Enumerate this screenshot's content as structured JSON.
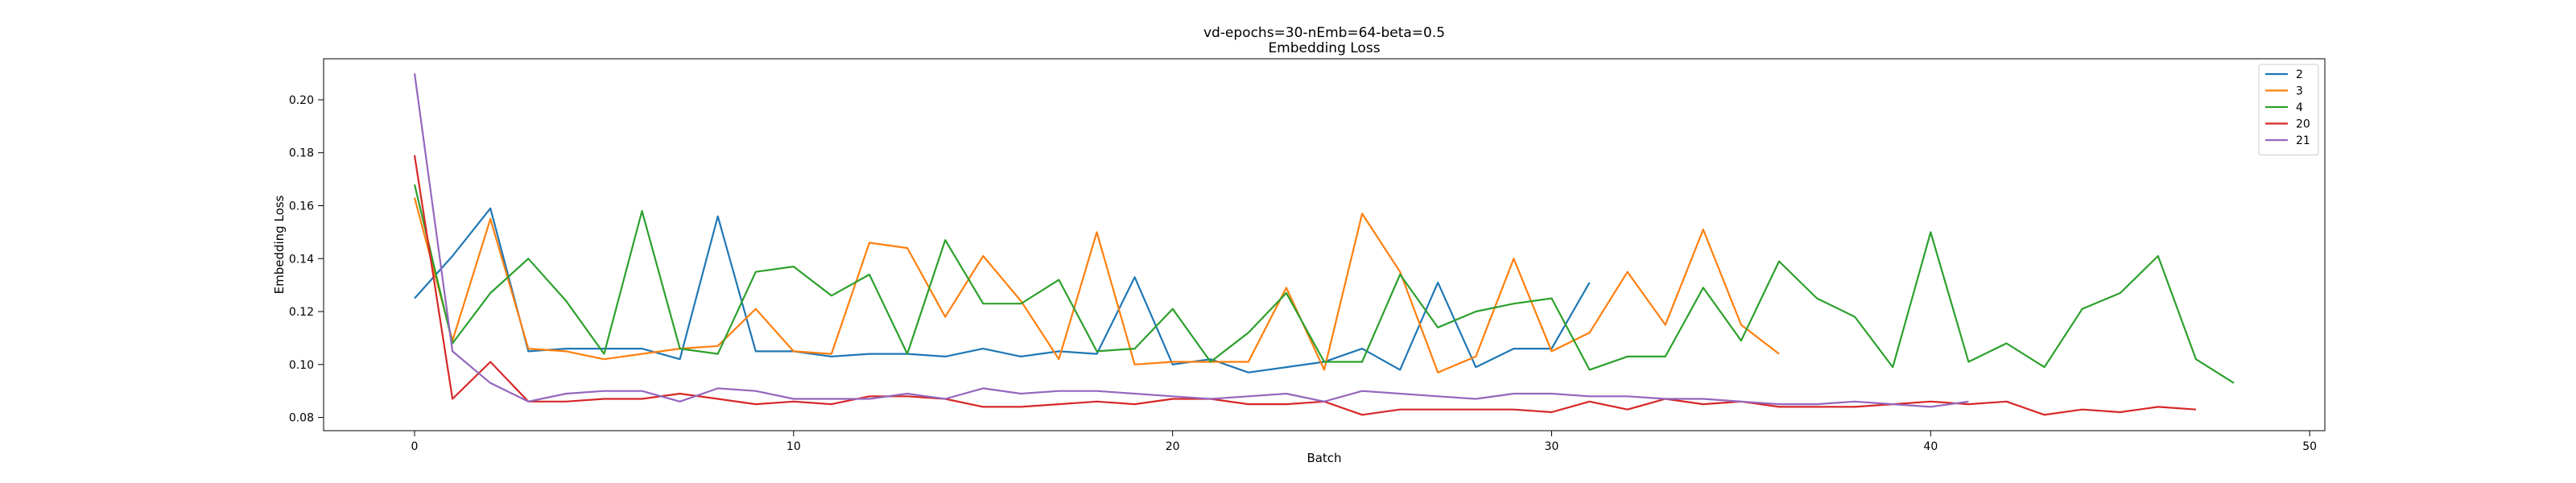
{
  "chart_data": {
    "type": "line",
    "title": "vd-epochs=30-nEmb=64-beta=0.5",
    "subtitle": "Embedding Loss",
    "xlabel": "Batch",
    "ylabel": "Embedding Loss",
    "xlim": [
      -2.4,
      50.4
    ],
    "ylim": [
      0.075,
      0.2155
    ],
    "xticks": [
      0,
      10,
      20,
      30,
      40,
      50
    ],
    "yticks": [
      0.08,
      0.1,
      0.12,
      0.14,
      0.16,
      0.18,
      0.2
    ],
    "ytick_labels": [
      "0.08",
      "0.10",
      "0.12",
      "0.14",
      "0.16",
      "0.18",
      "0.20"
    ],
    "grid": false,
    "legend_position": "top-right",
    "series": [
      {
        "name": "2",
        "color": "#1f77b4",
        "values": [
          0.125,
          0.141,
          0.159,
          0.105,
          0.106,
          0.106,
          0.106,
          0.102,
          0.156,
          0.105,
          0.105,
          0.103,
          0.104,
          0.104,
          0.103,
          0.106,
          0.103,
          0.105,
          0.104,
          0.133,
          0.1,
          0.102,
          0.097,
          0.099,
          0.101,
          0.106,
          0.098,
          0.131,
          0.099,
          0.106,
          0.106,
          0.131
        ]
      },
      {
        "name": "3",
        "color": "#ff7f0e",
        "values": [
          0.163,
          0.109,
          0.155,
          0.106,
          0.105,
          0.102,
          0.104,
          0.106,
          0.107,
          0.121,
          0.105,
          0.104,
          0.146,
          0.144,
          0.118,
          0.141,
          0.124,
          0.102,
          0.15,
          0.1,
          0.101,
          0.101,
          0.101,
          0.129,
          0.098,
          0.157,
          0.135,
          0.097,
          0.103,
          0.14,
          0.105,
          0.112,
          0.135,
          0.115,
          0.151,
          0.115,
          0.104
        ]
      },
      {
        "name": "4",
        "color": "#2ca02c",
        "values": [
          0.168,
          0.108,
          0.127,
          0.14,
          0.124,
          0.104,
          0.158,
          0.106,
          0.104,
          0.135,
          0.137,
          0.126,
          0.134,
          0.104,
          0.147,
          0.123,
          0.123,
          0.132,
          0.105,
          0.106,
          0.121,
          0.101,
          0.112,
          0.127,
          0.101,
          0.101,
          0.134,
          0.114,
          0.12,
          0.123,
          0.125,
          0.098,
          0.103,
          0.103,
          0.129,
          0.109,
          0.139,
          0.125,
          0.118,
          0.099,
          0.15,
          0.101,
          0.108,
          0.099,
          0.121,
          0.127,
          0.141,
          0.102,
          0.093
        ]
      },
      {
        "name": "20",
        "color": "#d62728",
        "values": [
          0.179,
          0.087,
          0.101,
          0.086,
          0.086,
          0.087,
          0.087,
          0.089,
          0.087,
          0.085,
          0.086,
          0.085,
          0.088,
          0.088,
          0.087,
          0.084,
          0.084,
          0.085,
          0.086,
          0.085,
          0.087,
          0.087,
          0.085,
          0.085,
          0.086,
          0.081,
          0.083,
          0.083,
          0.083,
          0.083,
          0.082,
          0.086,
          0.083,
          0.087,
          0.085,
          0.086,
          0.084,
          0.084,
          0.084,
          0.085,
          0.086,
          0.085,
          0.086,
          0.081,
          0.083,
          0.082,
          0.084,
          0.083
        ]
      },
      {
        "name": "21",
        "color": "#9467bd",
        "values": [
          0.21,
          0.105,
          0.093,
          0.086,
          0.089,
          0.09,
          0.09,
          0.086,
          0.091,
          0.09,
          0.087,
          0.087,
          0.087,
          0.089,
          0.087,
          0.091,
          0.089,
          0.09,
          0.09,
          0.089,
          0.088,
          0.087,
          0.088,
          0.089,
          0.086,
          0.09,
          0.089,
          0.088,
          0.087,
          0.089,
          0.089,
          0.088,
          0.088,
          0.087,
          0.087,
          0.086,
          0.085,
          0.085,
          0.086,
          0.085,
          0.084,
          0.086
        ]
      }
    ]
  }
}
